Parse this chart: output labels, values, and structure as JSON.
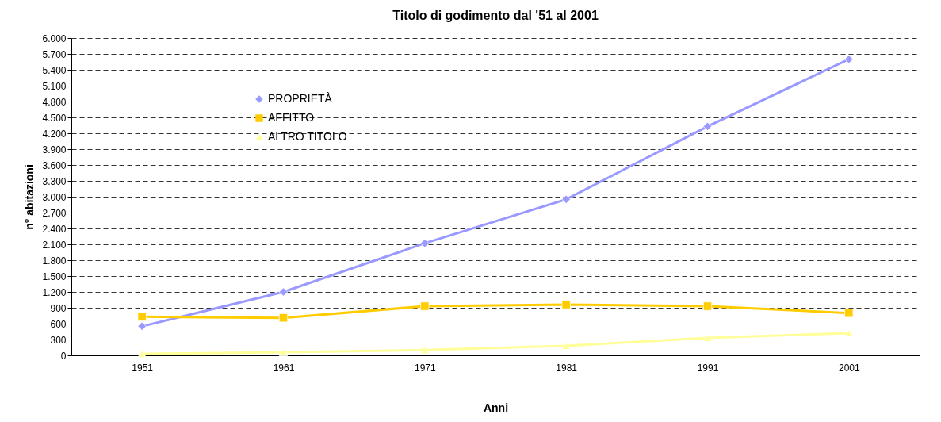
{
  "chart_data": {
    "type": "line",
    "title": "Titolo di godimento dal '51 al 2001",
    "xlabel": "Anni",
    "ylabel": "n° abitazioni",
    "categories": [
      "1951",
      "1961",
      "1971",
      "1981",
      "1991",
      "2001"
    ],
    "series": [
      {
        "name": "PROPRIETÀ",
        "color": "#9999ff",
        "marker": "diamond",
        "values": [
          550,
          1200,
          2120,
          2950,
          4330,
          5600
        ]
      },
      {
        "name": "AFFITTO",
        "color": "#ffcc00",
        "marker": "square",
        "values": [
          730,
          710,
          930,
          960,
          930,
          800
        ]
      },
      {
        "name": "ALTRO TITOLO",
        "color": "#ffff99",
        "marker": "triangle",
        "values": [
          30,
          60,
          100,
          180,
          330,
          420
        ]
      }
    ],
    "ylim": [
      0,
      6000
    ],
    "yticks": [
      0,
      {
        "value": 300,
        "label": "300"
      },
      {
        "value": 600,
        "label": "600"
      },
      {
        "value": 900,
        "label": "900"
      },
      {
        "value": 1200,
        "label": "1.200"
      },
      {
        "value": 1500,
        "label": "1.500"
      },
      {
        "value": 1800,
        "label": "1.800"
      },
      {
        "value": 2100,
        "label": "2.100"
      },
      {
        "value": 2400,
        "label": "2.400"
      },
      {
        "value": 2700,
        "label": "2.700"
      },
      {
        "value": 3000,
        "label": "3.000"
      },
      {
        "value": 3300,
        "label": "3.300"
      },
      {
        "value": 3600,
        "label": "3.600"
      },
      {
        "value": 3900,
        "label": "3.900"
      },
      {
        "value": 4200,
        "label": "4.200"
      },
      {
        "value": 4500,
        "label": "4.500"
      },
      {
        "value": 4800,
        "label": "4.800"
      },
      {
        "value": 5100,
        "label": "5.100"
      },
      {
        "value": 5400,
        "label": "5.400"
      },
      {
        "value": 5700,
        "label": "5.700"
      },
      {
        "value": 6000,
        "label": "6.000"
      }
    ],
    "grid": "y",
    "legend": "top left",
    "line_style": "solid"
  }
}
